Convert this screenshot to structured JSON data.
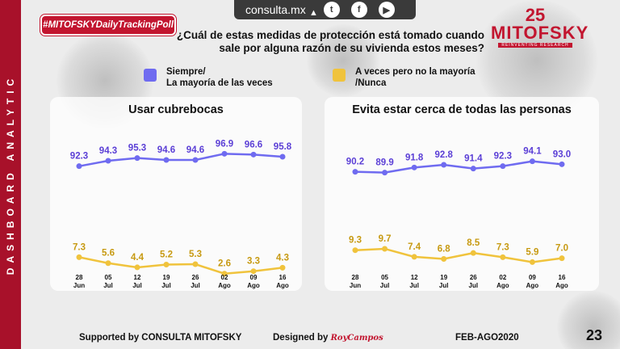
{
  "sidebar_text": "DASHBOARD ANALYTIC",
  "top_bar": {
    "site": "consulta.mx",
    "icons": [
      "twitter-icon",
      "facebook-icon",
      "youtube-icon"
    ]
  },
  "hashtag": "#MITOFSKYDailyTrackingPoll",
  "question": "¿Cuál de estas medidas de protección está tomado cuando sale por alguna razón de su vivienda estos meses?",
  "logo": {
    "years": "25",
    "name": "MITOFSKY",
    "tagline": "REINVENTING RESEARCH"
  },
  "legend": [
    {
      "label_line1": "Siempre/",
      "label_line2": "La mayoría  de las veces",
      "color": "#6f6bf0"
    },
    {
      "label_line1": "A veces pero no la mayoría",
      "label_line2": "/Nunca",
      "color": "#f0c33c"
    }
  ],
  "chart_data": [
    {
      "type": "line",
      "title": "Usar cubrebocas",
      "categories": [
        [
          "28",
          "Jun"
        ],
        [
          "05",
          "Jul"
        ],
        [
          "12",
          "Jul"
        ],
        [
          "19",
          "Jul"
        ],
        [
          "26",
          "Jul"
        ],
        [
          "02",
          "Ago"
        ],
        [
          "09",
          "Ago"
        ],
        [
          "16",
          "Ago"
        ]
      ],
      "series": [
        {
          "name": "Siempre/ La mayoría de las veces",
          "color": "#6f6bf0",
          "label_color": "#5b3fd6",
          "values": [
            92.3,
            94.3,
            95.3,
            94.6,
            94.6,
            96.9,
            96.6,
            95.8
          ]
        },
        {
          "name": "A veces pero no la mayoría /Nunca",
          "color": "#f0c33c",
          "label_color": "#c79a12",
          "values": [
            7.3,
            5.6,
            4.4,
            5.2,
            5.3,
            2.6,
            3.3,
            4.3
          ]
        }
      ],
      "ylim": [
        0,
        100
      ]
    },
    {
      "type": "line",
      "title": "Evita estar cerca de todas las personas",
      "categories": [
        [
          "28",
          "Jun"
        ],
        [
          "05",
          "Jul"
        ],
        [
          "12",
          "Jul"
        ],
        [
          "19",
          "Jul"
        ],
        [
          "26",
          "Jul"
        ],
        [
          "02",
          "Ago"
        ],
        [
          "09",
          "Ago"
        ],
        [
          "16",
          "Ago"
        ]
      ],
      "series": [
        {
          "name": "Siempre/ La mayoría de las veces",
          "color": "#6f6bf0",
          "label_color": "#5b3fd6",
          "values": [
            90.2,
            89.9,
            91.8,
            92.8,
            91.4,
            92.3,
            94.1,
            93.0
          ]
        },
        {
          "name": "A veces pero no la mayoría /Nunca",
          "color": "#f0c33c",
          "label_color": "#c79a12",
          "values": [
            9.3,
            9.7,
            7.4,
            6.8,
            8.5,
            7.3,
            5.9,
            7.0
          ]
        }
      ],
      "ylim": [
        0,
        100
      ]
    }
  ],
  "footer": {
    "supported": "Supported by   CONSULTA   MITOFSKY",
    "designed": "Designed by",
    "designer": "RoyCampos",
    "period": "FEB-AGO2020"
  },
  "page_number": "23"
}
